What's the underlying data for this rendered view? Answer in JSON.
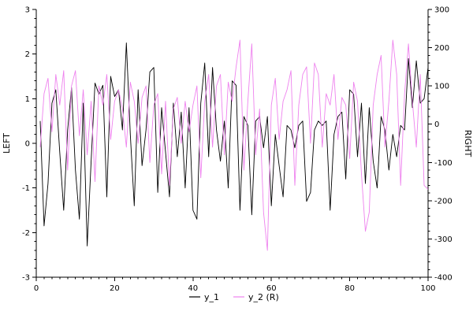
{
  "chart_data": {
    "type": "line",
    "title": "",
    "ylabel_left": "LEFT",
    "ylabel_right": "RIGHT",
    "xlim": [
      0,
      100
    ],
    "ylim_left": [
      -3,
      3
    ],
    "ylim_right": [
      -400,
      300
    ],
    "x_ticks": [
      0,
      20,
      40,
      60,
      80,
      100
    ],
    "left_ticks": [
      -3,
      -2,
      -1,
      0,
      1,
      2,
      3
    ],
    "right_ticks": [
      -400,
      -300,
      -200,
      -100,
      0,
      100,
      200,
      300
    ],
    "x_minor_step": 2,
    "left_minor_step": 0.2,
    "right_minor_step": 20,
    "x_first": 1,
    "x_step": 1,
    "grid": false,
    "legend_position": "bottom-center",
    "series": [
      {
        "name": "y_1",
        "axis": "left",
        "color": "#000000",
        "values": [
          0.5,
          -1.85,
          -0.9,
          0.9,
          1.2,
          -0.2,
          -1.5,
          0.3,
          1.25,
          -0.6,
          -1.7,
          0.9,
          -2.3,
          -0.4,
          1.35,
          1.1,
          1.3,
          -1.2,
          1.5,
          1.05,
          1.2,
          0.3,
          2.25,
          0.2,
          -1.4,
          1.2,
          -0.5,
          0.3,
          1.6,
          1.7,
          -1.1,
          0.8,
          -0.2,
          -1.2,
          0.9,
          -0.3,
          0.7,
          -1.0,
          0.8,
          -1.5,
          -1.7,
          0.9,
          1.8,
          -0.3,
          1.7,
          0.3,
          -0.4,
          0.5,
          -1.0,
          1.4,
          1.3,
          -1.5,
          0.6,
          0.4,
          -1.6,
          0.5,
          0.6,
          -0.1,
          0.6,
          -1.4,
          0.2,
          -0.5,
          -1.2,
          0.4,
          0.3,
          -0.1,
          0.4,
          0.5,
          -1.3,
          -1.1,
          0.3,
          0.5,
          0.4,
          0.5,
          -1.5,
          0.2,
          0.6,
          0.7,
          -0.8,
          1.2,
          1.1,
          -0.3,
          0.9,
          -0.9,
          0.8,
          -0.4,
          -1.0,
          0.6,
          0.3,
          -0.6,
          0.2,
          -0.3,
          0.4,
          0.3,
          1.9,
          0.8,
          1.85,
          0.9,
          1.0,
          1.7
        ]
      },
      {
        "name": "y_2 (R)",
        "axis": "right",
        "color": "#ee82ee",
        "values": [
          -60,
          80,
          120,
          -20,
          130,
          50,
          140,
          -120,
          100,
          140,
          -30,
          90,
          -80,
          60,
          -150,
          100,
          50,
          130,
          -40,
          60,
          90,
          40,
          -60,
          110,
          60,
          -50,
          70,
          100,
          -100,
          50,
          80,
          -130,
          60,
          -160,
          40,
          70,
          -50,
          60,
          -20,
          50,
          100,
          -140,
          60,
          130,
          -60,
          100,
          130,
          -80,
          110,
          60,
          150,
          220,
          -120,
          60,
          210,
          -80,
          40,
          -230,
          -330,
          50,
          120,
          -40,
          60,
          90,
          140,
          -160,
          50,
          130,
          150,
          -50,
          160,
          130,
          -60,
          80,
          50,
          130,
          -40,
          70,
          50,
          -90,
          110,
          60,
          -130,
          -280,
          -230,
          50,
          130,
          180,
          -60,
          60,
          220,
          130,
          -160,
          80,
          210,
          60,
          -60,
          130,
          -160,
          -170
        ]
      }
    ]
  }
}
